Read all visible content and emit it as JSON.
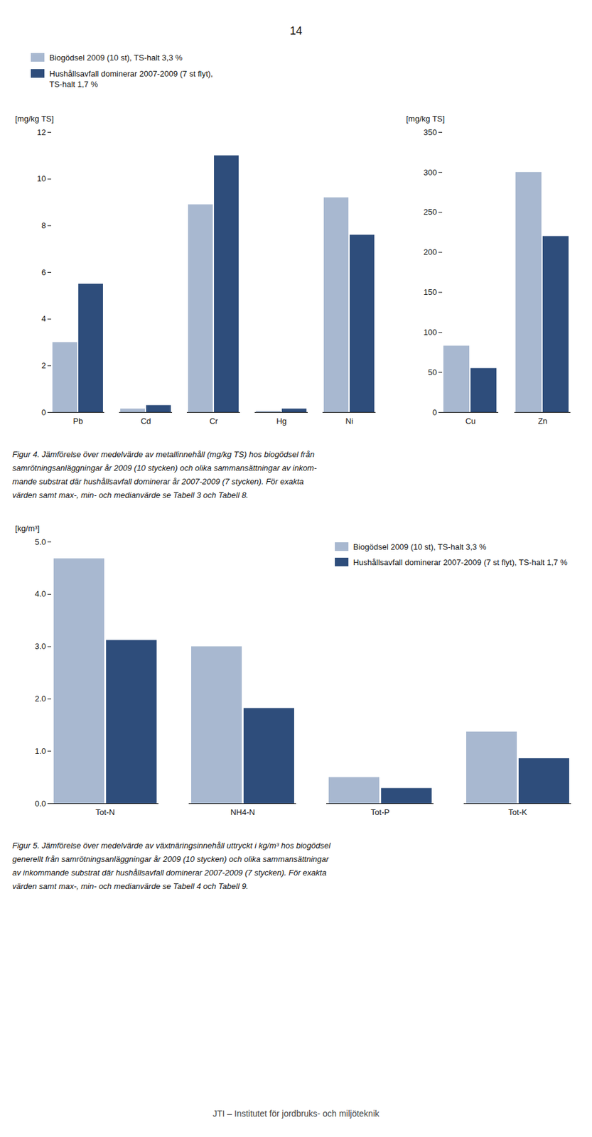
{
  "page_number": "14",
  "footer": "JTI – Institutet för jordbruks- och miljöteknik",
  "chart_data": [
    {
      "type": "bar",
      "categories": [
        "Pb",
        "Cd",
        "Cr",
        "Hg",
        "Ni"
      ],
      "series": [
        {
          "name": "Biogödsel 2009 (10 st), TS-halt 3,3 %",
          "color": "#a8b8d0",
          "values": [
            3.0,
            0.15,
            8.9,
            0.05,
            9.2
          ]
        },
        {
          "name": "Hushållsavfall dominerar 2007-2009 (7 st flyt),\nTS-halt 1,7 %",
          "color": "#2e4d7b",
          "values": [
            5.5,
            0.3,
            11.0,
            0.15,
            7.6
          ]
        }
      ],
      "ylabel": "[mg/kg TS]",
      "ylim": [
        0,
        12
      ],
      "yticks": [
        0,
        2,
        4,
        6,
        8,
        10,
        12
      ],
      "grid": false,
      "legend": "top"
    },
    {
      "type": "bar",
      "categories": [
        "Cu",
        "Zn"
      ],
      "series": [
        {
          "name": "Biogödsel 2009 (10 st), TS-halt 3,3 %",
          "color": "#a8b8d0",
          "values": [
            83.0,
            300.0
          ]
        },
        {
          "name": "Hushållsavfall dominerar 2007-2009 (7 st flyt),\nTS-halt 1,7 %",
          "color": "#2e4d7b",
          "values": [
            55.0,
            220.0
          ]
        }
      ],
      "ylabel": "[mg/kg TS]",
      "ylim": [
        0,
        350
      ],
      "yticks": [
        0,
        50,
        100,
        150,
        200,
        250,
        300,
        350
      ],
      "grid": false,
      "caption": [
        "Figur 4. Jämförelse över medelvärde av metallinnehåll (mg/kg TS) hos biogödsel från",
        "samrötningsanläggningar år 2009 (10 stycken) och olika sammansättningar av inkom-",
        "mande substrat där hushållsavfall dominerar år 2007-2009 (7 stycken). För exakta",
        "värden samt max-, min- och medianvärde se Tabell 3 och Tabell 8."
      ]
    },
    {
      "type": "bar",
      "categories": [
        "Tot-N",
        "NH4-N",
        "Tot-P",
        "Tot-K"
      ],
      "series": [
        {
          "name": "Biogödsel 2009 (10 st), TS-halt 3,3 %",
          "color": "#a8b8d0",
          "values": [
            4.68,
            3.0,
            0.5,
            1.37
          ]
        },
        {
          "name": "Hushållsavfall dominerar 2007-2009 (7 st flyt), TS-halt 1,7 %",
          "color": "#2e4d7b",
          "values": [
            3.12,
            1.82,
            0.29,
            0.86
          ]
        }
      ],
      "ylabel": "[kg/m³]",
      "ylim": [
        0,
        5
      ],
      "yticks": [
        0,
        1,
        2,
        3,
        4,
        5
      ],
      "grid": false,
      "legend": "upper right",
      "caption": [
        "Figur 5. Jämförelse över medelvärde av växtnäringsinnehåll uttryckt i kg/m³ hos biogödsel",
        "generellt från samrötningsanläggningar år 2009 (10 stycken) och olika sammansättningar",
        "av inkommande substrat där hushållsavfall dominerar 2007-2009 (7 stycken). För exakta",
        "värden samt max-, min- och medianvärde se Tabell 4 och Tabell 9."
      ]
    }
  ]
}
